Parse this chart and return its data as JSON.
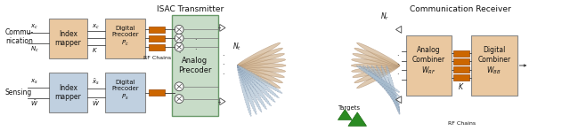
{
  "fig_width": 6.4,
  "fig_height": 1.48,
  "dpi": 100,
  "bg_color": "#ffffff",
  "title_isac": "ISAC Transmitter",
  "title_comm_rx": "Communication Receiver",
  "label_rf_chains_tx": "RF Chains",
  "label_rf_chains_rx": "RF Chains",
  "label_targets": "Targets",
  "orange_bar_color": "#CC6600",
  "orange_bar_edge": "#994400",
  "beam_color_comm": "#D4B896",
  "beam_color_sens": "#A8BED0",
  "beam_edge_comm": "#B09070",
  "beam_edge_sens": "#8090A8",
  "green_triangle_color": "#2A8B22",
  "arrow_color": "#444444",
  "text_color": "#111111",
  "box_comm_index_color": "#EAC8A0",
  "box_comm_digital_color": "#EAC8A0",
  "box_sens_index_color": "#C0D0E0",
  "box_sens_digital_color": "#C0D0E0",
  "box_analog_color": "#C8DCC8",
  "box_analog_edge": "#6A9A6A",
  "box_rx_color": "#EAC8A0",
  "box_edge": "#888888"
}
